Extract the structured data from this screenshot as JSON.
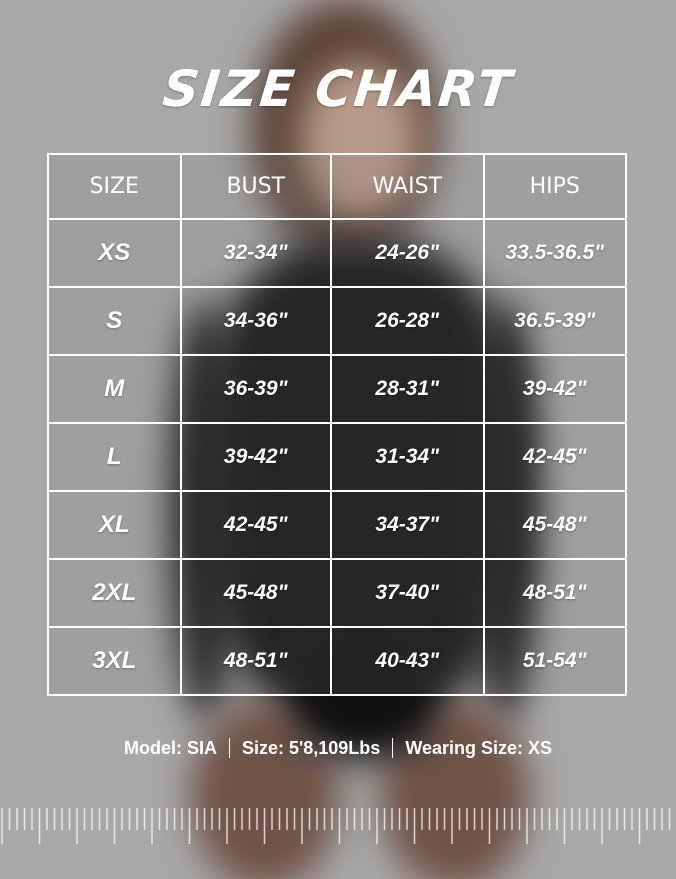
{
  "title": "SIZE CHART",
  "table": {
    "headers": [
      "SIZE",
      "BUST",
      "WAIST",
      "HIPS"
    ],
    "rows": [
      [
        "XS",
        "32-34\"",
        "24-26\"",
        "33.5-36.5\""
      ],
      [
        "S",
        "34-36\"",
        "26-28\"",
        "36.5-39\""
      ],
      [
        "M",
        "36-39\"",
        "28-31\"",
        "39-42\""
      ],
      [
        "L",
        "39-42\"",
        "31-34\"",
        "42-45\""
      ],
      [
        "XL",
        "42-45\"",
        "34-37\"",
        "45-48\""
      ],
      [
        "2XL",
        "45-48\"",
        "37-40\"",
        "48-51\""
      ],
      [
        "3XL",
        "48-51\"",
        "40-43\"",
        "51-54\""
      ]
    ]
  },
  "info": {
    "model": "Model: SIA",
    "size": "Size: 5'8,109Lbs",
    "wearing": "Wearing Size: XS"
  },
  "colors": {
    "background": "#a8a8a8",
    "text": "#ffffff"
  }
}
